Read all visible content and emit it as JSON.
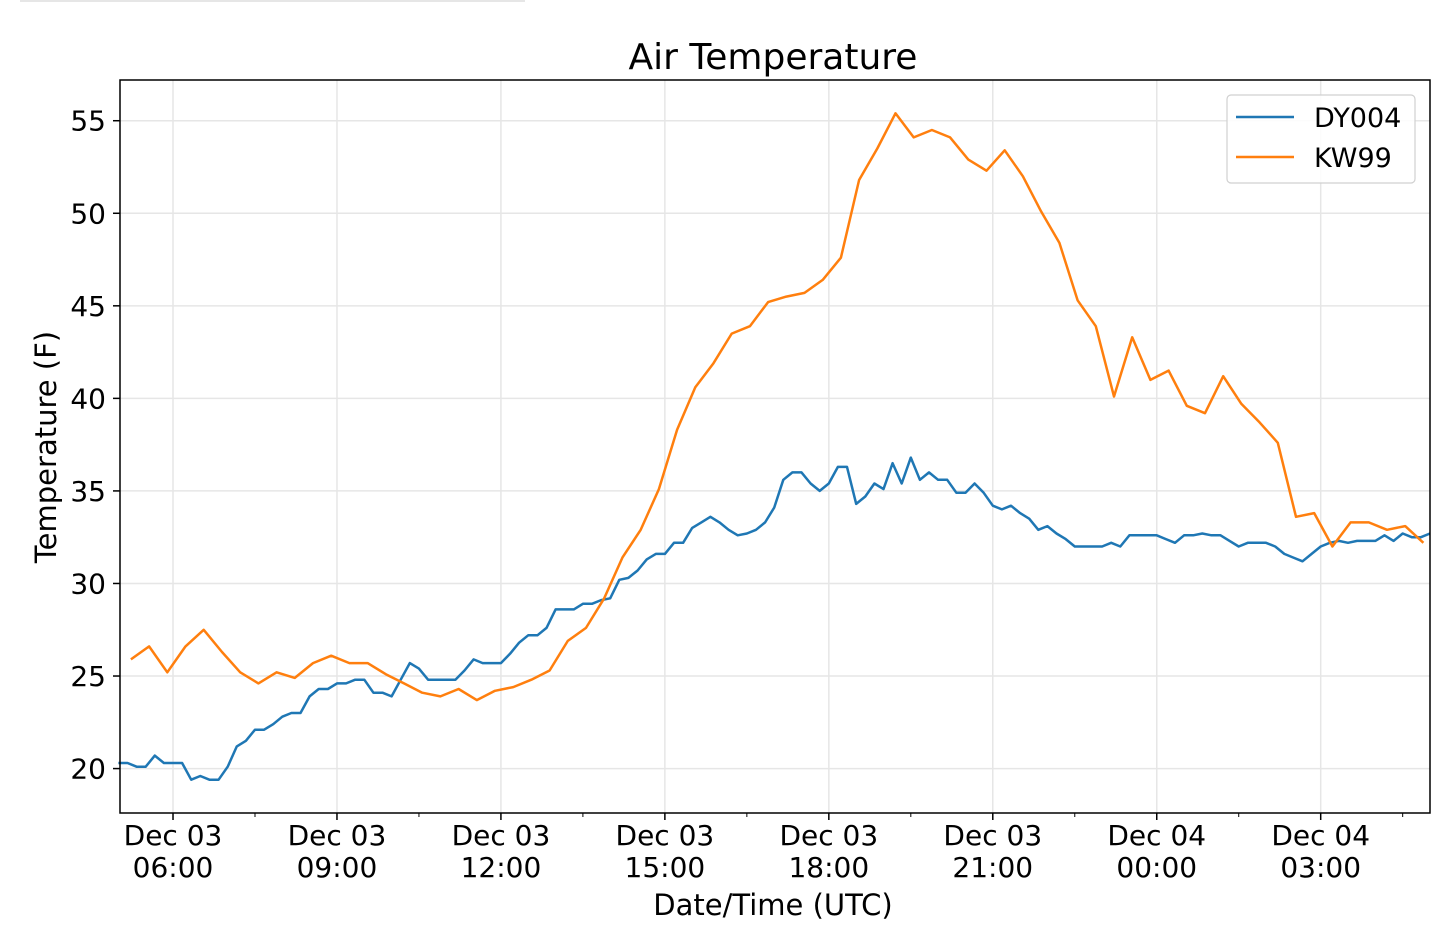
{
  "chart_data": {
    "type": "line",
    "title": "Air Temperature",
    "xlabel": "Date/Time (UTC)",
    "ylabel": "Temperature (F)",
    "x_unit": "hours since Dec 03 00:00 UTC",
    "xlim": [
      5.03,
      29.0
    ],
    "ylim": [
      17.6,
      57.2
    ],
    "grid": true,
    "legend_position": "top-right",
    "yticks": [
      20,
      25,
      30,
      35,
      40,
      45,
      50,
      55
    ],
    "xticks": [
      {
        "value": 6,
        "line1": "Dec 03",
        "line2": "06:00"
      },
      {
        "value": 9,
        "line1": "Dec 03",
        "line2": "09:00"
      },
      {
        "value": 12,
        "line1": "Dec 03",
        "line2": "12:00"
      },
      {
        "value": 15,
        "line1": "Dec 03",
        "line2": "15:00"
      },
      {
        "value": 18,
        "line1": "Dec 03",
        "line2": "18:00"
      },
      {
        "value": 21,
        "line1": "Dec 03",
        "line2": "21:00"
      },
      {
        "value": 24,
        "line1": "Dec 04",
        "line2": "00:00"
      },
      {
        "value": 27,
        "line1": "Dec 04",
        "line2": "03:00"
      }
    ],
    "series": [
      {
        "name": "DY004",
        "color": "#1f77b4",
        "x_start_hour": 5.0,
        "x_end_hour": 29.0,
        "values": [
          20.3,
          20.3,
          20.1,
          20.1,
          20.7,
          20.3,
          20.3,
          20.3,
          19.4,
          19.6,
          19.4,
          19.4,
          20.1,
          21.2,
          21.5,
          22.1,
          22.1,
          22.4,
          22.8,
          23.0,
          23.0,
          23.9,
          24.3,
          24.3,
          24.6,
          24.6,
          24.8,
          24.8,
          24.1,
          24.1,
          23.9,
          24.8,
          25.7,
          25.4,
          24.8,
          24.8,
          24.8,
          24.8,
          25.3,
          25.9,
          25.7,
          25.7,
          25.7,
          26.2,
          26.8,
          27.2,
          27.2,
          27.6,
          28.6,
          28.6,
          28.6,
          28.9,
          28.9,
          29.1,
          29.2,
          30.2,
          30.3,
          30.7,
          31.3,
          31.6,
          31.6,
          32.2,
          32.2,
          33.0,
          33.3,
          33.6,
          33.3,
          32.9,
          32.6,
          32.7,
          32.9,
          33.3,
          34.1,
          35.6,
          36.0,
          36.0,
          35.4,
          35.0,
          35.4,
          36.3,
          36.3,
          34.3,
          34.7,
          35.4,
          35.1,
          36.5,
          35.4,
          36.8,
          35.6,
          36.0,
          35.6,
          35.6,
          34.9,
          34.9,
          35.4,
          34.9,
          34.2,
          34.0,
          34.2,
          33.8,
          33.5,
          32.9,
          33.1,
          32.7,
          32.4,
          32.0,
          32.0,
          32.0,
          32.0,
          32.2,
          32.0,
          32.6,
          32.6,
          32.6,
          32.6,
          32.4,
          32.2,
          32.6,
          32.6,
          32.7,
          32.6,
          32.6,
          32.3,
          32.0,
          32.2,
          32.2,
          32.2,
          32.0,
          31.6,
          31.4,
          31.2,
          31.6,
          32.0,
          32.2,
          32.3,
          32.2,
          32.3,
          32.3,
          32.3,
          32.6,
          32.3,
          32.7,
          32.5,
          32.5,
          32.7
        ]
      },
      {
        "name": "KW99",
        "color": "#ff7f0e",
        "x_start_hour": 5.23,
        "x_end_hour": 28.88,
        "values": [
          25.9,
          26.6,
          25.2,
          26.6,
          27.5,
          26.3,
          25.2,
          24.6,
          25.2,
          24.9,
          25.7,
          26.1,
          25.7,
          25.7,
          25.1,
          24.6,
          24.1,
          23.9,
          24.3,
          23.7,
          24.2,
          24.4,
          24.8,
          25.3,
          26.9,
          27.6,
          29.2,
          31.4,
          32.9,
          35.1,
          38.3,
          40.6,
          41.9,
          43.5,
          43.9,
          45.2,
          45.5,
          45.7,
          46.4,
          47.6,
          51.8,
          53.5,
          55.4,
          54.1,
          54.5,
          54.1,
          52.9,
          52.3,
          53.4,
          52.0,
          50.1,
          48.4,
          45.3,
          43.9,
          40.1,
          43.3,
          41.0,
          41.5,
          39.6,
          39.2,
          41.2,
          39.7,
          38.7,
          37.6,
          33.6,
          33.8,
          32.0,
          33.3,
          33.3,
          32.9,
          33.1,
          32.2
        ]
      }
    ]
  }
}
